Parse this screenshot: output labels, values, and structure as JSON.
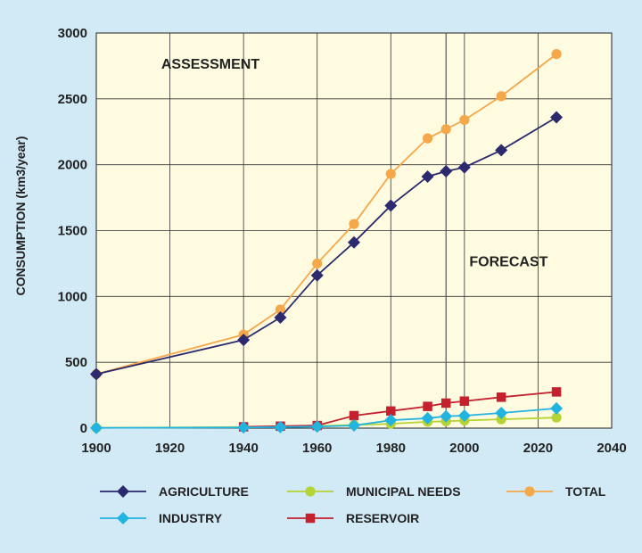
{
  "chart_data": {
    "type": "line",
    "title": "",
    "xlabel": "",
    "ylabel": "CONSUMPTION (km3/year)",
    "xlim": [
      1900,
      2040
    ],
    "ylim": [
      0,
      3000
    ],
    "x_ticks": [
      1900,
      1920,
      1940,
      1960,
      1980,
      2000,
      2020,
      2040
    ],
    "y_ticks": [
      0,
      500,
      1000,
      1500,
      2000,
      2500,
      3000
    ],
    "grid": true,
    "legend_position": "bottom",
    "divider_x": 1995,
    "annotations": [
      {
        "text": "ASSESSMENT",
        "x": 1931,
        "y": 2730
      },
      {
        "text": "FORECAST",
        "x": 2012,
        "y": 1230
      }
    ],
    "series": [
      {
        "name": "AGRICULTURE",
        "color": "#2b2a6e",
        "marker": "diamond",
        "x": [
          1900,
          1940,
          1950,
          1960,
          1970,
          1980,
          1990,
          1995,
          2000,
          2010,
          2025
        ],
        "values": [
          410,
          670,
          840,
          1160,
          1410,
          1690,
          1910,
          1950,
          1980,
          2110,
          2360
        ]
      },
      {
        "name": "MUNICIPAL NEEDS",
        "color": "#b5d334",
        "marker": "circle",
        "x": [
          1900,
          1940,
          1950,
          1960,
          1970,
          1980,
          1990,
          1995,
          2000,
          2010,
          2025
        ],
        "values": [
          2,
          8,
          12,
          16,
          24,
          33,
          48,
          52,
          58,
          67,
          80
        ]
      },
      {
        "name": "TOTAL",
        "color": "#f5a84a",
        "marker": "circle",
        "x": [
          1900,
          1940,
          1950,
          1960,
          1970,
          1980,
          1990,
          1995,
          2000,
          2010,
          2025
        ],
        "values": [
          410,
          710,
          900,
          1250,
          1550,
          1930,
          2200,
          2270,
          2340,
          2520,
          2840
        ]
      },
      {
        "name": "INDUSTRY",
        "color": "#22b4e0",
        "marker": "diamond",
        "x": [
          1900,
          1940,
          1950,
          1960,
          1970,
          1980,
          1990,
          1995,
          2000,
          2010,
          2025
        ],
        "values": [
          2,
          5,
          8,
          12,
          20,
          60,
          75,
          90,
          95,
          115,
          150
        ]
      },
      {
        "name": "RESERVOIR",
        "color": "#c4202e",
        "marker": "square",
        "x": [
          1940,
          1950,
          1960,
          1970,
          1980,
          1990,
          1995,
          2000,
          2010,
          2025
        ],
        "values": [
          10,
          15,
          20,
          95,
          130,
          165,
          190,
          205,
          235,
          275
        ]
      }
    ]
  }
}
